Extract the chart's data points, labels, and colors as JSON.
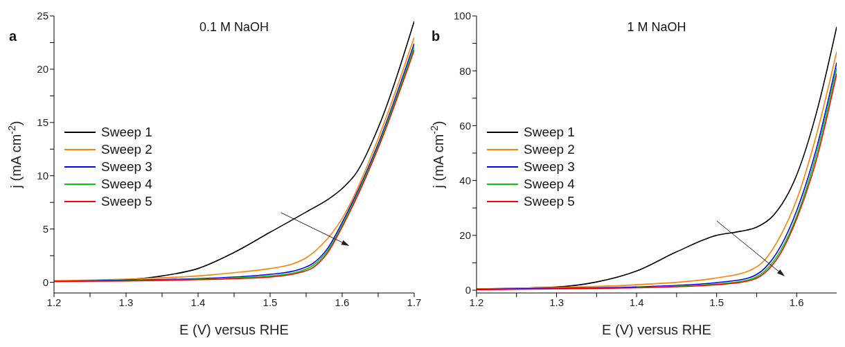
{
  "chart_data": [
    {
      "type": "line",
      "title": "0.1 M NaOH",
      "xlabel": "E (V) versus RHE",
      "ylabel": "j (mA cm$^{-2}$)",
      "annotations": [
        "a"
      ],
      "legend": "left",
      "line_style": "solid",
      "xlim": [
        1.2,
        1.7
      ],
      "ylim": [
        -1,
        25
      ],
      "xticks": [
        1.2,
        {
          "value": 1.25,
          "label": null
        },
        1.3,
        {
          "value": 1.35,
          "label": null
        },
        1.4,
        {
          "value": 1.45,
          "label": null
        },
        1.5,
        {
          "value": 1.55,
          "label": null
        },
        1.6,
        {
          "value": 1.65,
          "label": null
        },
        1.7
      ],
      "yticks": [
        0,
        {
          "value": 2.5,
          "label": null
        },
        5,
        {
          "value": 7.5,
          "label": null
        },
        10,
        {
          "value": 12.5,
          "label": null
        },
        15,
        {
          "value": 17.5,
          "label": null
        },
        20,
        {
          "value": 22.5,
          "label": null
        },
        25
      ],
      "series": [
        {
          "name": "Sweep 1",
          "color": "#000000",
          "x": [
            1.2,
            1.3,
            1.35,
            1.4,
            1.45,
            1.5,
            1.55,
            1.585,
            1.6,
            1.62,
            1.65,
            1.7
          ],
          "values": [
            0.1,
            0.25,
            0.6,
            1.3,
            2.8,
            4.7,
            6.6,
            8.0,
            8.8,
            10.3,
            14.5,
            24.5
          ]
        },
        {
          "name": "Sweep 2",
          "color": "#ff8000",
          "x": [
            1.2,
            1.3,
            1.4,
            1.45,
            1.5,
            1.53,
            1.55,
            1.57,
            1.6,
            1.65,
            1.7
          ],
          "values": [
            0.15,
            0.3,
            0.6,
            0.9,
            1.3,
            1.7,
            2.3,
            3.4,
            6.0,
            13.5,
            23.0
          ]
        },
        {
          "name": "Sweep 3",
          "color": "#0000ff",
          "x": [
            1.2,
            1.3,
            1.4,
            1.5,
            1.54,
            1.56,
            1.58,
            1.6,
            1.65,
            1.7
          ],
          "values": [
            0.1,
            0.2,
            0.35,
            0.75,
            1.2,
            1.8,
            3.2,
            5.6,
            13.0,
            22.4
          ]
        },
        {
          "name": "Sweep 4",
          "color": "#00cc00",
          "x": [
            1.2,
            1.3,
            1.4,
            1.5,
            1.54,
            1.56,
            1.58,
            1.6,
            1.65,
            1.7
          ],
          "values": [
            0.1,
            0.15,
            0.3,
            0.6,
            1.0,
            1.6,
            3.0,
            5.4,
            12.8,
            22.1
          ]
        },
        {
          "name": "Sweep 5",
          "color": "#ff0000",
          "x": [
            1.2,
            1.3,
            1.4,
            1.5,
            1.54,
            1.56,
            1.58,
            1.6,
            1.65,
            1.7
          ],
          "values": [
            0.08,
            0.12,
            0.25,
            0.5,
            0.9,
            1.4,
            2.8,
            5.2,
            12.6,
            21.8
          ]
        }
      ]
    },
    {
      "type": "line",
      "title": "1 M NaOH",
      "xlabel": "E (V) versus RHE",
      "ylabel": "j (mA cm$^{-2}$)",
      "annotations": [
        "b"
      ],
      "legend": "left",
      "line_style": "solid",
      "xlim": [
        1.2,
        1.65
      ],
      "ylim": [
        -1,
        100
      ],
      "xticks": [
        1.2,
        {
          "value": 1.25,
          "label": null
        },
        1.3,
        {
          "value": 1.35,
          "label": null
        },
        1.4,
        {
          "value": 1.45,
          "label": null
        },
        1.5,
        {
          "value": 1.55,
          "label": null
        },
        1.6
      ],
      "yticks": [
        0,
        {
          "value": 10,
          "label": null
        },
        20,
        {
          "value": 30,
          "label": null
        },
        40,
        {
          "value": 50,
          "label": null
        },
        60,
        {
          "value": 70,
          "label": null
        },
        80,
        {
          "value": 90,
          "label": null
        },
        100
      ],
      "series": [
        {
          "name": "Sweep 1",
          "color": "#000000",
          "x": [
            1.2,
            1.3,
            1.35,
            1.4,
            1.45,
            1.5,
            1.53,
            1.55,
            1.57,
            1.6,
            1.625,
            1.65
          ],
          "values": [
            0.5,
            1.2,
            3,
            7,
            14,
            20,
            21.5,
            23,
            27,
            42,
            65,
            96
          ]
        },
        {
          "name": "Sweep 2",
          "color": "#ff8000",
          "x": [
            1.2,
            1.3,
            1.4,
            1.5,
            1.54,
            1.56,
            1.58,
            1.6,
            1.625,
            1.65
          ],
          "values": [
            0.5,
            1.0,
            2.0,
            4.5,
            7,
            11,
            20,
            33,
            57,
            87
          ]
        },
        {
          "name": "Sweep 3",
          "color": "#0000ff",
          "x": [
            1.2,
            1.3,
            1.4,
            1.5,
            1.54,
            1.56,
            1.58,
            1.6,
            1.625,
            1.65
          ],
          "values": [
            0.3,
            0.7,
            1.2,
            2.8,
            4.5,
            8,
            16,
            29,
            52,
            83
          ]
        },
        {
          "name": "Sweep 4",
          "color": "#00cc00",
          "x": [
            1.4,
            1.5,
            1.54,
            1.56,
            1.58,
            1.6,
            1.625,
            1.65
          ],
          "values": [
            1.0,
            2.3,
            3.8,
            7,
            14.5,
            27,
            50,
            81
          ]
        },
        {
          "name": "Sweep 5",
          "color": "#ff0000",
          "x": [
            1.2,
            1.3,
            1.4,
            1.5,
            1.54,
            1.56,
            1.58,
            1.6,
            1.625,
            1.65
          ],
          "values": [
            0.2,
            0.5,
            0.9,
            2.0,
            3.4,
            6.3,
            13.5,
            26,
            48,
            79
          ]
        }
      ]
    }
  ]
}
